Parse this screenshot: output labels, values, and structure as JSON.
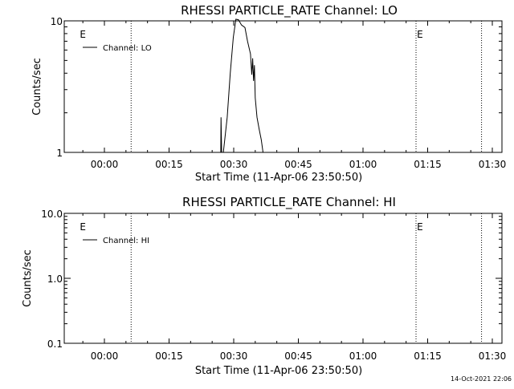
{
  "footer": {
    "timestamp": "14-Oct-2021 22:06"
  },
  "chart_data": [
    {
      "type": "line",
      "title": "RHESSI PARTICLE_RATE Channel: LO",
      "xlabel": "Start Time (11-Apr-06 23:50:50)",
      "ylabel": "Counts/sec",
      "y_scale": "log",
      "ylim": [
        1,
        10
      ],
      "xlim_minutes": [
        -6,
        31
      ],
      "x_ticks": [
        {
          "label": "00:00",
          "value": 0
        },
        {
          "label": "00:15",
          "value": 15
        },
        {
          "label": "00:30",
          "value": 30
        },
        {
          "label": "00:45",
          "value": 45
        },
        {
          "label": "01:00",
          "value": 60
        },
        {
          "label": "01:15",
          "value": 75
        },
        {
          "label": "01:30",
          "value": 90
        }
      ],
      "y_ticks": [
        {
          "label": "1",
          "value": 1
        },
        {
          "label": "10",
          "value": 10
        }
      ],
      "event_lines": [
        6.2,
        72.3,
        87.5
      ],
      "event_markers": [
        {
          "label": "E",
          "x": -5.7
        },
        {
          "label": "E",
          "x": 72.5
        }
      ],
      "legend": {
        "position": "top-left",
        "entries": [
          "Channel: LO"
        ]
      },
      "series": [
        {
          "name": "Channel: LO",
          "color": "#000000",
          "x": [
            27.0,
            27.05,
            27.2,
            27.35,
            27.6,
            28.5,
            29.2,
            29.9,
            30.5,
            31.1,
            31.8,
            32.6,
            33.2,
            33.9,
            34.2,
            34.4,
            34.6,
            34.8,
            35.0,
            35.4,
            35.9,
            36.4,
            36.8
          ],
          "y": [
            1.0,
            1.85,
            1.0,
            1.0,
            1.0,
            1.85,
            4.0,
            7.5,
            10.5,
            10.2,
            9.3,
            8.9,
            7.0,
            5.6,
            3.9,
            5.2,
            3.5,
            4.6,
            2.6,
            1.85,
            1.5,
            1.25,
            1.0
          ]
        }
      ]
    },
    {
      "type": "line",
      "title": "RHESSI PARTICLE_RATE Channel: HI",
      "xlabel": "Start Time (11-Apr-06 23:50:50)",
      "ylabel": "Counts/sec",
      "y_scale": "log",
      "ylim": [
        0.1,
        10
      ],
      "xlim_minutes": [
        -6,
        31
      ],
      "x_ticks": [
        {
          "label": "00:00",
          "value": 0
        },
        {
          "label": "00:15",
          "value": 15
        },
        {
          "label": "00:30",
          "value": 30
        },
        {
          "label": "00:45",
          "value": 45
        },
        {
          "label": "01:00",
          "value": 60
        },
        {
          "label": "01:15",
          "value": 75
        },
        {
          "label": "01:30",
          "value": 90
        }
      ],
      "y_ticks": [
        {
          "label": "0.1",
          "value": 0.1
        },
        {
          "label": "1.0",
          "value": 1.0
        },
        {
          "label": "10.0",
          "value": 10.0
        }
      ],
      "event_lines": [
        6.2,
        72.3,
        87.5
      ],
      "event_markers": [
        {
          "label": "E",
          "x": -5.7
        },
        {
          "label": "E",
          "x": 72.5
        }
      ],
      "legend": {
        "position": "top-left",
        "entries": [
          "Channel: HI"
        ]
      },
      "series": [
        {
          "name": "Channel: HI",
          "color": "#000000",
          "x": [],
          "y": []
        }
      ]
    }
  ]
}
